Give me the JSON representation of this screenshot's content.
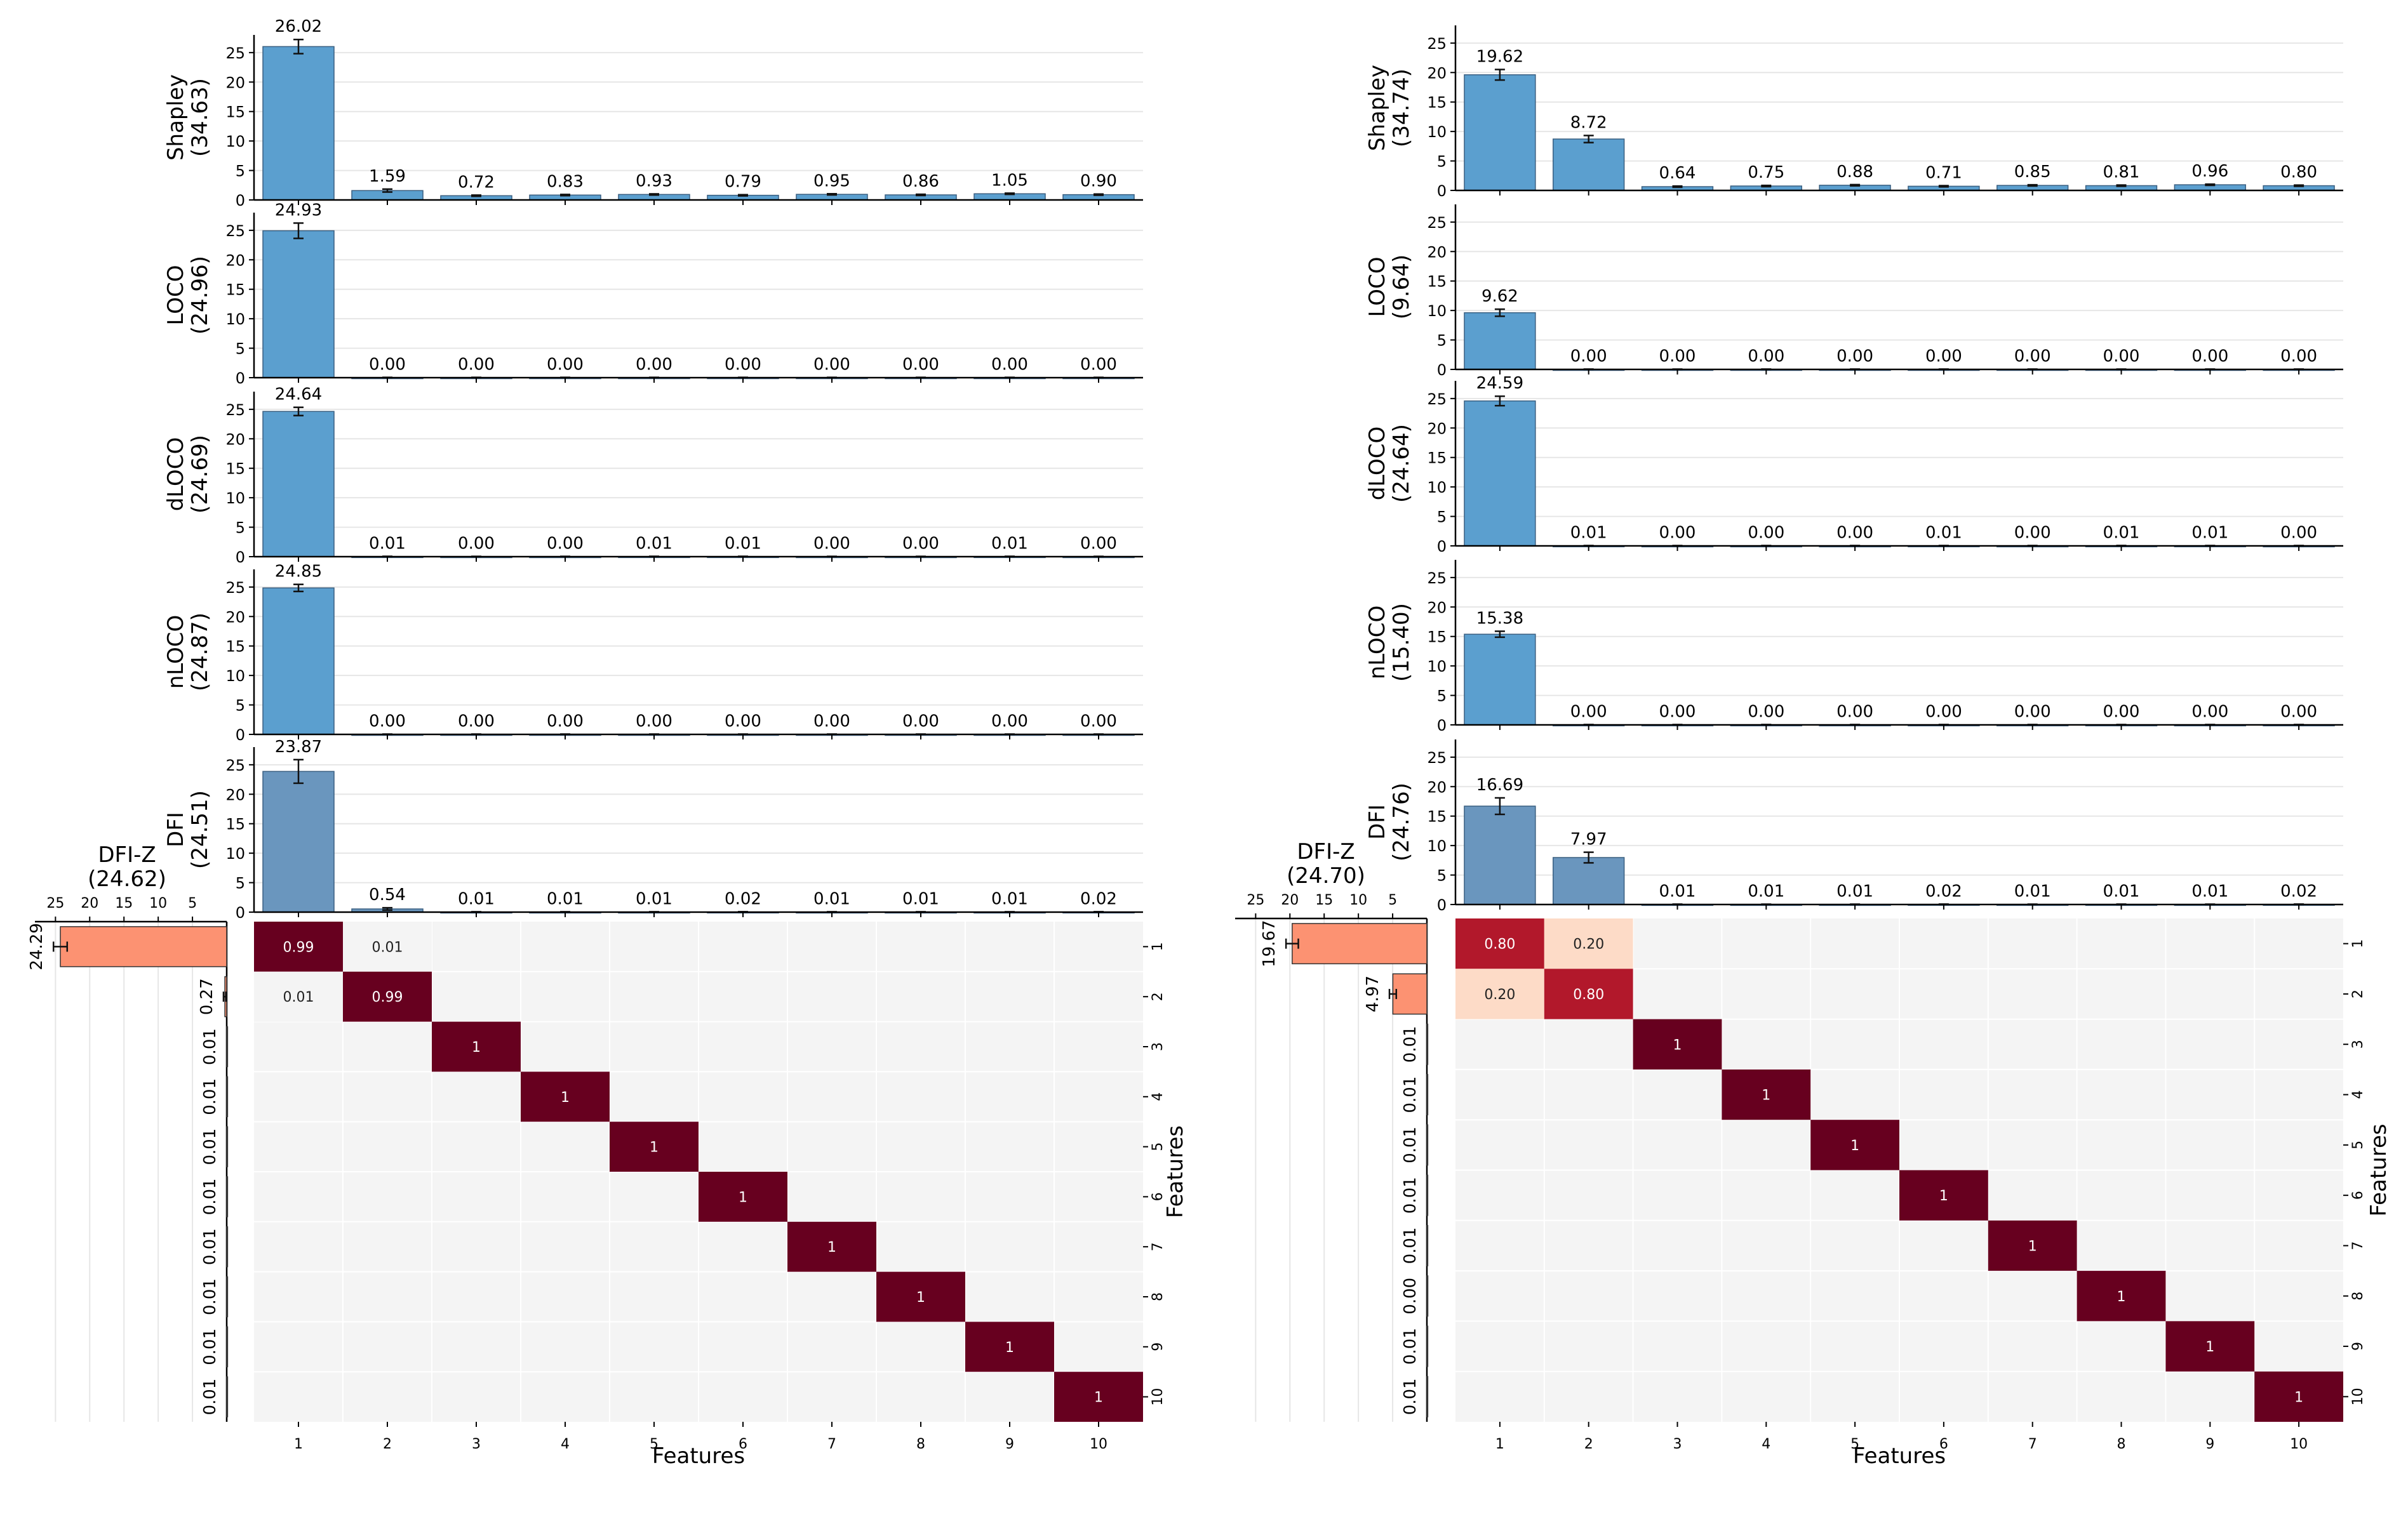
{
  "chart_data": [
    {
      "type": "bar",
      "panel": "left",
      "categories": [
        "1",
        "2",
        "3",
        "4",
        "5",
        "6",
        "7",
        "8",
        "9",
        "10"
      ],
      "ylim": [
        0,
        28
      ],
      "yticks": [
        0,
        5,
        10,
        15,
        20,
        25
      ],
      "grid": true,
      "rows": [
        {
          "label_line1": "Shapley",
          "label_line2": "(34.63)",
          "values": [
            26.02,
            1.59,
            0.72,
            0.83,
            0.93,
            0.79,
            0.95,
            0.86,
            1.05,
            0.9
          ],
          "value_labels": [
            "26.02",
            "1.59",
            "0.72",
            "0.83",
            "0.93",
            "0.79",
            "0.95",
            "0.86",
            "1.05",
            "0.90"
          ],
          "errors": [
            1.2,
            0.25,
            0.1,
            0.1,
            0.1,
            0.1,
            0.1,
            0.1,
            0.1,
            0.1
          ],
          "color": "#5b9fcf"
        },
        {
          "label_line1": "LOCO",
          "label_line2": "(24.96)",
          "values": [
            24.93,
            0,
            0,
            0,
            0,
            0,
            0,
            0,
            0,
            0
          ],
          "value_labels": [
            "24.93",
            "0.00",
            "0.00",
            "0.00",
            "0.00",
            "0.00",
            "0.00",
            "0.00",
            "0.00",
            "0.00"
          ],
          "errors": [
            1.3,
            0.05,
            0.05,
            0.05,
            0.05,
            0.05,
            0.05,
            0.05,
            0.05,
            0.05
          ],
          "color": "#5b9fcf"
        },
        {
          "label_line1": "dLOCO",
          "label_line2": "(24.69)",
          "values": [
            24.64,
            0.01,
            0,
            0,
            0.01,
            0.01,
            0,
            0,
            0.01,
            0
          ],
          "value_labels": [
            "24.64",
            "0.01",
            "0.00",
            "0.00",
            "0.01",
            "0.01",
            "0.00",
            "0.00",
            "0.01",
            "0.00"
          ],
          "errors": [
            0.7,
            0.05,
            0.05,
            0.05,
            0.05,
            0.05,
            0.05,
            0.05,
            0.05,
            0.05
          ],
          "color": "#5b9fcf"
        },
        {
          "label_line1": "nLOCO",
          "label_line2": "(24.87)",
          "values": [
            24.85,
            0,
            0,
            0,
            0,
            0,
            0,
            0,
            0,
            0
          ],
          "value_labels": [
            "24.85",
            "0.00",
            "0.00",
            "0.00",
            "0.00",
            "0.00",
            "0.00",
            "0.00",
            "0.00",
            "0.00"
          ],
          "errors": [
            0.6,
            0.05,
            0.05,
            0.05,
            0.05,
            0.05,
            0.05,
            0.05,
            0.05,
            0.05
          ],
          "color": "#5b9fcf"
        },
        {
          "label_line1": "DFI",
          "label_line2": "(24.51)",
          "values": [
            23.87,
            0.54,
            0.01,
            0.01,
            0.01,
            0.02,
            0.01,
            0.01,
            0.01,
            0.02
          ],
          "value_labels": [
            "23.87",
            "0.54",
            "0.01",
            "0.01",
            "0.01",
            "0.02",
            "0.01",
            "0.01",
            "0.01",
            "0.02"
          ],
          "errors": [
            2.0,
            0.2,
            0.05,
            0.05,
            0.05,
            0.05,
            0.05,
            0.05,
            0.05,
            0.05
          ],
          "color": "#6a96be"
        }
      ],
      "dfiz": {
        "title_line1": "DFI-Z",
        "title_line2": "(24.62)",
        "xlim": [
          28,
          0
        ],
        "xticks": [
          25,
          20,
          15,
          10,
          5
        ],
        "values": [
          24.29,
          0.27,
          0.01,
          0.01,
          0.01,
          0.01,
          0.01,
          0.01,
          0.01,
          0.01
        ],
        "value_labels": [
          "24.29",
          "0.27",
          "0.01",
          "0.01",
          "0.01",
          "0.01",
          "0.01",
          "0.01",
          "0.01",
          "0.01"
        ],
        "errors": [
          1.0,
          0.2,
          0,
          0,
          0,
          0,
          0,
          0,
          0,
          0
        ],
        "color": "#fc9272"
      },
      "heatmap": {
        "xlabel": "Features",
        "ylabel": "Features",
        "labels": [
          "1",
          "2",
          "3",
          "4",
          "5",
          "6",
          "7",
          "8",
          "9",
          "10"
        ],
        "cells": [
          {
            "r": 0,
            "c": 0,
            "v": 0.99,
            "t": "0.99"
          },
          {
            "r": 0,
            "c": 1,
            "v": 0.01,
            "t": "0.01"
          },
          {
            "r": 1,
            "c": 0,
            "v": 0.01,
            "t": "0.01"
          },
          {
            "r": 1,
            "c": 1,
            "v": 0.99,
            "t": "0.99"
          },
          {
            "r": 2,
            "c": 2,
            "v": 1,
            "t": "1"
          },
          {
            "r": 3,
            "c": 3,
            "v": 1,
            "t": "1"
          },
          {
            "r": 4,
            "c": 4,
            "v": 1,
            "t": "1"
          },
          {
            "r": 5,
            "c": 5,
            "v": 1,
            "t": "1"
          },
          {
            "r": 6,
            "c": 6,
            "v": 1,
            "t": "1"
          },
          {
            "r": 7,
            "c": 7,
            "v": 1,
            "t": "1"
          },
          {
            "r": 8,
            "c": 8,
            "v": 1,
            "t": "1"
          },
          {
            "r": 9,
            "c": 9,
            "v": 1,
            "t": "1"
          }
        ]
      }
    },
    {
      "type": "bar",
      "panel": "right",
      "categories": [
        "1",
        "2",
        "3",
        "4",
        "5",
        "6",
        "7",
        "8",
        "9",
        "10"
      ],
      "ylim": [
        0,
        28
      ],
      "yticks": [
        0,
        5,
        10,
        15,
        20,
        25
      ],
      "grid": true,
      "rows": [
        {
          "label_line1": "Shapley",
          "label_line2": "(34.74)",
          "values": [
            19.62,
            8.72,
            0.64,
            0.75,
            0.88,
            0.71,
            0.85,
            0.81,
            0.96,
            0.8
          ],
          "value_labels": [
            "19.62",
            "8.72",
            "0.64",
            "0.75",
            "0.88",
            "0.71",
            "0.85",
            "0.81",
            "0.96",
            "0.80"
          ],
          "errors": [
            0.9,
            0.6,
            0.1,
            0.1,
            0.1,
            0.1,
            0.1,
            0.1,
            0.1,
            0.1
          ],
          "color": "#5b9fcf"
        },
        {
          "label_line1": "LOCO",
          "label_line2": "(9.64)",
          "values": [
            9.62,
            0,
            0,
            0,
            0,
            0,
            0,
            0,
            0,
            0
          ],
          "value_labels": [
            "9.62",
            "0.00",
            "0.00",
            "0.00",
            "0.00",
            "0.00",
            "0.00",
            "0.00",
            "0.00",
            "0.00"
          ],
          "errors": [
            0.6,
            0.05,
            0.05,
            0.05,
            0.05,
            0.05,
            0.05,
            0.05,
            0.05,
            0.05
          ],
          "color": "#5b9fcf"
        },
        {
          "label_line1": "dLOCO",
          "label_line2": "(24.64)",
          "values": [
            24.59,
            0.01,
            0,
            0,
            0,
            0.01,
            0,
            0.01,
            0.01,
            0
          ],
          "value_labels": [
            "24.59",
            "0.01",
            "0.00",
            "0.00",
            "0.00",
            "0.01",
            "0.00",
            "0.01",
            "0.01",
            "0.00"
          ],
          "errors": [
            0.8,
            0.05,
            0.05,
            0.05,
            0.05,
            0.05,
            0.05,
            0.05,
            0.05,
            0.05
          ],
          "color": "#5b9fcf"
        },
        {
          "label_line1": "nLOCO",
          "label_line2": "(15.40)",
          "values": [
            15.38,
            0,
            0,
            0,
            0,
            0,
            0,
            0,
            0,
            0
          ],
          "value_labels": [
            "15.38",
            "0.00",
            "0.00",
            "0.00",
            "0.00",
            "0.00",
            "0.00",
            "0.00",
            "0.00",
            "0.00"
          ],
          "errors": [
            0.5,
            0.05,
            0.05,
            0.05,
            0.05,
            0.05,
            0.05,
            0.05,
            0.05,
            0.05
          ],
          "color": "#5b9fcf"
        },
        {
          "label_line1": "DFI",
          "label_line2": "(24.76)",
          "values": [
            16.69,
            7.97,
            0.01,
            0.01,
            0.01,
            0.02,
            0.01,
            0.01,
            0.01,
            0.02
          ],
          "value_labels": [
            "16.69",
            "7.97",
            "0.01",
            "0.01",
            "0.01",
            "0.02",
            "0.01",
            "0.01",
            "0.01",
            "0.02"
          ],
          "errors": [
            1.4,
            0.9,
            0.05,
            0.05,
            0.05,
            0.05,
            0.05,
            0.05,
            0.05,
            0.05
          ],
          "color": "#6a96be"
        }
      ],
      "dfiz": {
        "title_line1": "DFI-Z",
        "title_line2": "(24.70)",
        "xlim": [
          28,
          0
        ],
        "xticks": [
          25,
          20,
          15,
          10,
          5
        ],
        "values": [
          19.67,
          4.97,
          0.01,
          0.01,
          0.01,
          0.01,
          0.01,
          0.0,
          0.01,
          0.01
        ],
        "value_labels": [
          "19.67",
          "4.97",
          "0.01",
          "0.01",
          "0.01",
          "0.01",
          "0.01",
          "0.00",
          "0.01",
          "0.01"
        ],
        "errors": [
          0.9,
          0.5,
          0,
          0,
          0,
          0,
          0,
          0,
          0,
          0
        ],
        "color": "#fc9272"
      },
      "heatmap": {
        "xlabel": "Features",
        "ylabel": "Features",
        "labels": [
          "1",
          "2",
          "3",
          "4",
          "5",
          "6",
          "7",
          "8",
          "9",
          "10"
        ],
        "cells": [
          {
            "r": 0,
            "c": 0,
            "v": 0.8,
            "t": "0.80"
          },
          {
            "r": 0,
            "c": 1,
            "v": 0.2,
            "t": "0.20"
          },
          {
            "r": 1,
            "c": 0,
            "v": 0.2,
            "t": "0.20"
          },
          {
            "r": 1,
            "c": 1,
            "v": 0.8,
            "t": "0.80"
          },
          {
            "r": 2,
            "c": 2,
            "v": 1,
            "t": "1"
          },
          {
            "r": 3,
            "c": 3,
            "v": 1,
            "t": "1"
          },
          {
            "r": 4,
            "c": 4,
            "v": 1,
            "t": "1"
          },
          {
            "r": 5,
            "c": 5,
            "v": 1,
            "t": "1"
          },
          {
            "r": 6,
            "c": 6,
            "v": 1,
            "t": "1"
          },
          {
            "r": 7,
            "c": 7,
            "v": 1,
            "t": "1"
          },
          {
            "r": 8,
            "c": 8,
            "v": 1,
            "t": "1"
          },
          {
            "r": 9,
            "c": 9,
            "v": 1,
            "t": "1"
          }
        ]
      }
    }
  ]
}
